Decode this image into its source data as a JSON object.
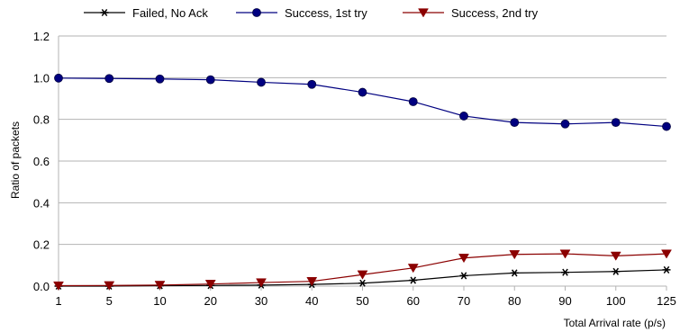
{
  "chart_data": {
    "type": "line",
    "title": "",
    "xlabel": "Total Arrival rate (p/s)",
    "ylabel": "Ratio of packets",
    "categories": [
      "1",
      "5",
      "10",
      "20",
      "30",
      "40",
      "50",
      "60",
      "70",
      "80",
      "90",
      "100",
      "125"
    ],
    "ylim": [
      0,
      1.2
    ],
    "yticks": [
      "0.0",
      "0.2",
      "0.4",
      "0.6",
      "0.8",
      "1.0",
      "1.2"
    ],
    "grid": "horizontal",
    "legend_position": "top",
    "series": [
      {
        "name": "Failed, No Ack",
        "marker": "asterisk",
        "color": "#000000",
        "values": [
          0.0,
          0.0,
          0.002,
          0.003,
          0.005,
          0.008,
          0.014,
          0.028,
          0.05,
          0.063,
          0.066,
          0.07,
          0.078
        ]
      },
      {
        "name": "Success, 1st try",
        "marker": "circle",
        "color": "#000080",
        "values": [
          0.998,
          0.996,
          0.994,
          0.99,
          0.978,
          0.968,
          0.93,
          0.885,
          0.816,
          0.785,
          0.778,
          0.785,
          0.766
        ]
      },
      {
        "name": "Success, 2nd try",
        "marker": "triangle-down",
        "color": "#8b0000",
        "values": [
          0.002,
          0.003,
          0.005,
          0.01,
          0.017,
          0.023,
          0.055,
          0.087,
          0.135,
          0.152,
          0.155,
          0.145,
          0.155
        ]
      }
    ]
  }
}
